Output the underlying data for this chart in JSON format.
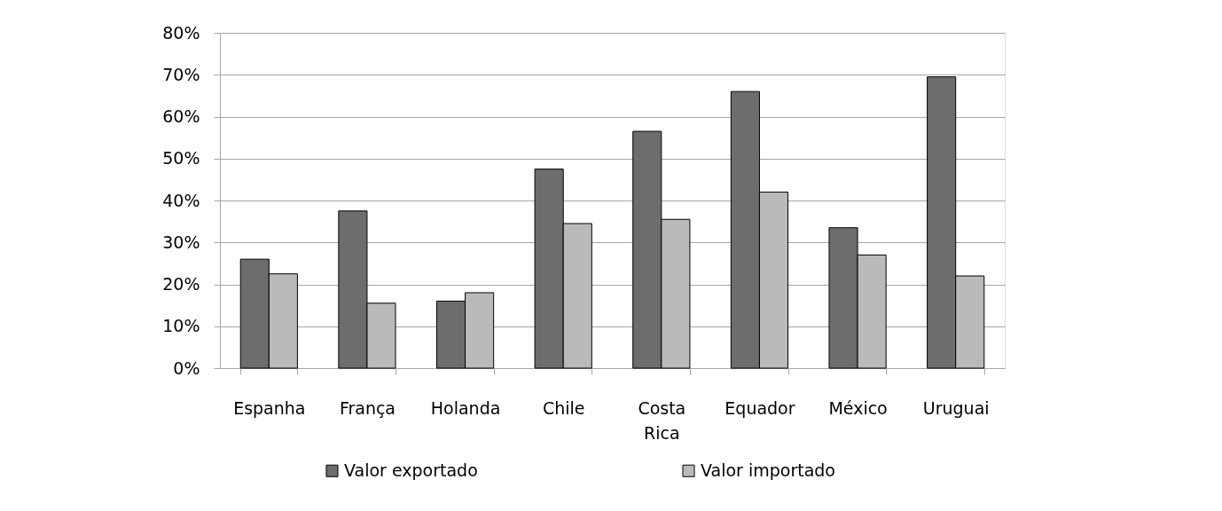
{
  "chart_data": {
    "type": "bar",
    "categories": [
      "Espanha",
      "França",
      "Holanda",
      "Chile",
      "Costa Rica",
      "Equador",
      "México",
      "Uruguai"
    ],
    "series": [
      {
        "name": "Valor exportado",
        "color": "#6d6d6d",
        "values": [
          26,
          37.5,
          16,
          47.5,
          56.5,
          66,
          33.5,
          69.5
        ]
      },
      {
        "name": "Valor importado",
        "color": "#bababa",
        "values": [
          22.5,
          15.5,
          18,
          34.5,
          35.5,
          42,
          27,
          22
        ]
      }
    ],
    "ylim": [
      0,
      80
    ],
    "yticks": [
      {
        "value": 0,
        "label": "0%"
      },
      {
        "value": 10,
        "label": "10%"
      },
      {
        "value": 20,
        "label": "20%"
      },
      {
        "value": 30,
        "label": "30%"
      },
      {
        "value": 40,
        "label": "40%"
      },
      {
        "value": 50,
        "label": "50%"
      },
      {
        "value": 60,
        "label": "60%"
      },
      {
        "value": 70,
        "label": "70%"
      },
      {
        "value": 80,
        "label": "80%"
      }
    ],
    "grid": "y",
    "legend": "bottom"
  }
}
